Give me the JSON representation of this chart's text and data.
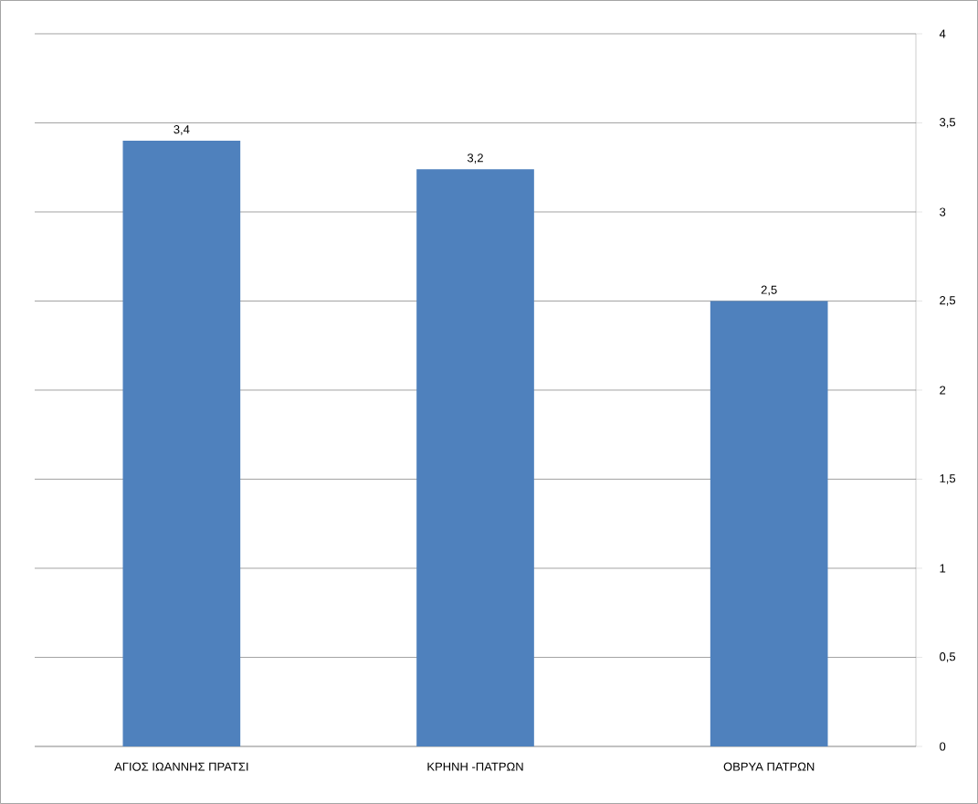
{
  "chart_data": {
    "type": "bar",
    "categories": [
      "ΑΓΙΟΣ ΙΩΑΝΝΗΣ ΠΡΑΤΣΙ",
      "ΚΡΗΝΗ -ΠΑΤΡΩΝ",
      "ΟΒΡΥΑ ΠΑΤΡΩΝ"
    ],
    "values": [
      3.4,
      3.24,
      2.5
    ],
    "value_labels": [
      "3,4",
      "3,2",
      "2,5"
    ],
    "color": "#4f81bd",
    "ylim": [
      0,
      4
    ],
    "yticks": [
      0,
      {
        "value": 0.5,
        "label": "0,5"
      },
      1,
      {
        "value": 1.5,
        "label": "1,5"
      },
      2,
      {
        "value": 2.5,
        "label": "2,5"
      },
      3,
      {
        "value": 3.5,
        "label": "3,5"
      },
      4
    ],
    "grid": "y"
  }
}
